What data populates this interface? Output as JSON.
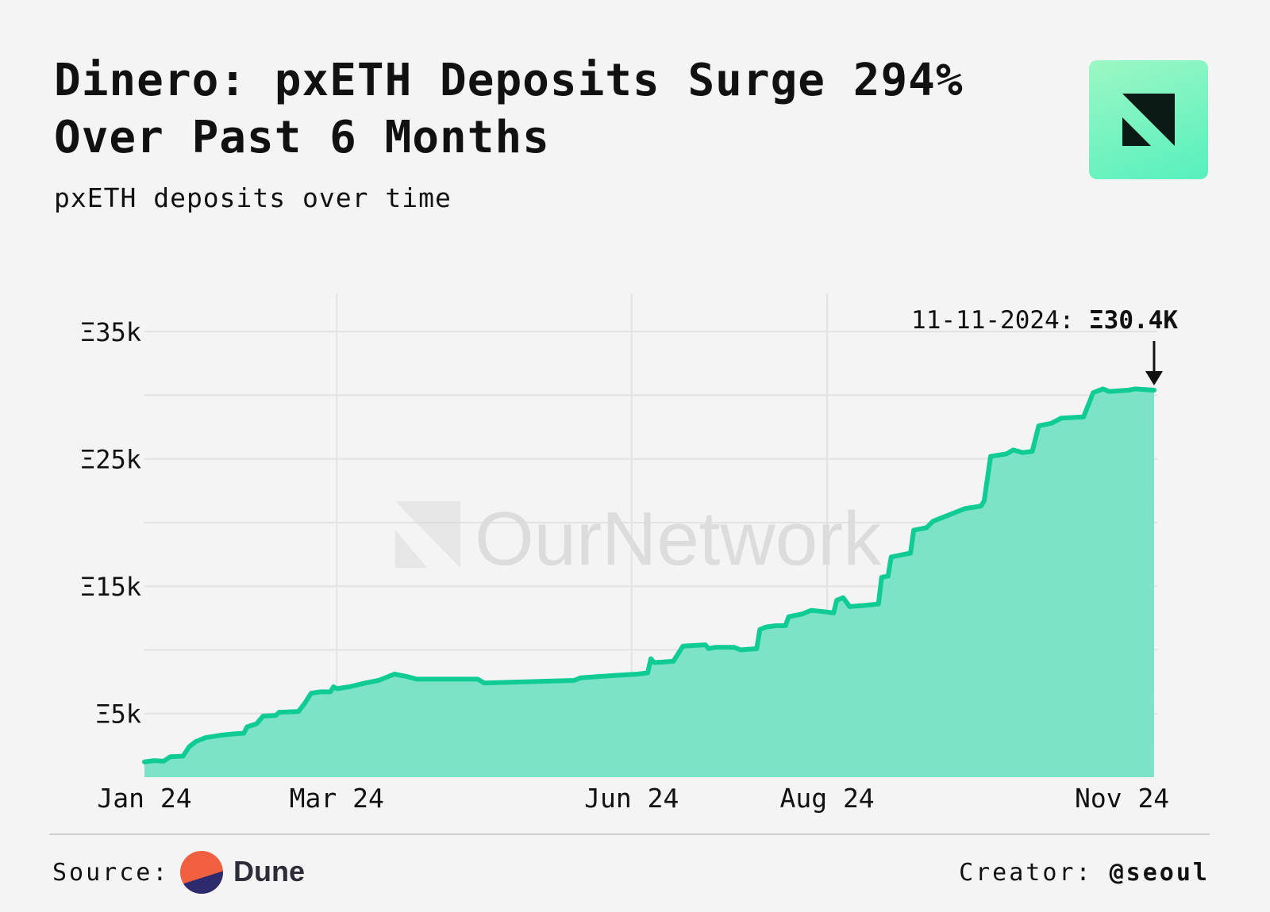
{
  "header": {
    "title": "Dinero: pxETH Deposits Surge 294% Over Past 6 Months",
    "subtitle": "pxETH deposits over time",
    "logo_icon": "ournetwork-logo-icon",
    "logo_colors": [
      "#9cf7c4",
      "#56f0bd",
      "#0b1a14"
    ]
  },
  "watermark": {
    "text": "OurNetwork"
  },
  "chart_data": {
    "type": "area",
    "title": "pxETH deposits over time",
    "xlabel": "",
    "ylabel": "",
    "x_ticks": [
      "Jan 24",
      "Mar 24",
      "Jun 24",
      "Aug 24",
      "Nov 24"
    ],
    "y_ticks": [
      "Ξ5k",
      "Ξ15k",
      "Ξ25k",
      "Ξ35k"
    ],
    "y_tick_values": [
      5000,
      15000,
      25000,
      35000
    ],
    "ylim": [
      0,
      38000
    ],
    "xlim": [
      "2024-01-01",
      "2024-11-12"
    ],
    "grid": true,
    "line_color": "#10cc94",
    "fill_color": "#7de3c6",
    "annotation": {
      "date": "2024-11-11",
      "label": "11-11-2024: ",
      "value_label": "Ξ30.4K",
      "value": 30400
    },
    "series": [
      {
        "values": [
          [
            "2024-01-01",
            1200
          ],
          [
            "2024-01-04",
            1300
          ],
          [
            "2024-01-07",
            1250
          ],
          [
            "2024-01-09",
            1600
          ],
          [
            "2024-01-13",
            1650
          ],
          [
            "2024-01-15",
            2400
          ],
          [
            "2024-01-17",
            2800
          ],
          [
            "2024-01-20",
            3100
          ],
          [
            "2024-01-25",
            3300
          ],
          [
            "2024-01-29",
            3400
          ],
          [
            "2024-02-01",
            3450
          ],
          [
            "2024-02-02",
            3950
          ],
          [
            "2024-02-05",
            4200
          ],
          [
            "2024-02-07",
            4800
          ],
          [
            "2024-02-11",
            4850
          ],
          [
            "2024-02-12",
            5100
          ],
          [
            "2024-02-18",
            5150
          ],
          [
            "2024-02-20",
            5800
          ],
          [
            "2024-02-22",
            6600
          ],
          [
            "2024-02-25",
            6700
          ],
          [
            "2024-02-28",
            6700
          ],
          [
            "2024-02-29",
            7100
          ],
          [
            "2024-03-01",
            6950
          ],
          [
            "2024-03-05",
            7100
          ],
          [
            "2024-03-10",
            7400
          ],
          [
            "2024-03-14",
            7600
          ],
          [
            "2024-03-19",
            8100
          ],
          [
            "2024-03-23",
            7900
          ],
          [
            "2024-03-26",
            7700
          ],
          [
            "2024-04-14",
            7700
          ],
          [
            "2024-04-16",
            7400
          ],
          [
            "2024-05-14",
            7600
          ],
          [
            "2024-05-16",
            7800
          ],
          [
            "2024-05-27",
            8000
          ],
          [
            "2024-06-03",
            8100
          ],
          [
            "2024-06-06",
            8200
          ],
          [
            "2024-06-07",
            9300
          ],
          [
            "2024-06-08",
            9000
          ],
          [
            "2024-06-14",
            9100
          ],
          [
            "2024-06-17",
            10300
          ],
          [
            "2024-06-24",
            10400
          ],
          [
            "2024-06-25",
            10100
          ],
          [
            "2024-06-27",
            10200
          ],
          [
            "2024-07-03",
            10200
          ],
          [
            "2024-07-05",
            10000
          ],
          [
            "2024-07-10",
            10100
          ],
          [
            "2024-07-11",
            11600
          ],
          [
            "2024-07-13",
            11800
          ],
          [
            "2024-07-16",
            11900
          ],
          [
            "2024-07-19",
            11900
          ],
          [
            "2024-07-20",
            12600
          ],
          [
            "2024-07-24",
            12800
          ],
          [
            "2024-07-27",
            13100
          ],
          [
            "2024-07-31",
            13000
          ],
          [
            "2024-08-03",
            12900
          ],
          [
            "2024-08-04",
            13900
          ],
          [
            "2024-08-06",
            14100
          ],
          [
            "2024-08-08",
            13400
          ],
          [
            "2024-08-13",
            13500
          ],
          [
            "2024-08-17",
            13600
          ],
          [
            "2024-08-18",
            15700
          ],
          [
            "2024-08-20",
            15800
          ],
          [
            "2024-08-21",
            17300
          ],
          [
            "2024-08-23",
            17400
          ],
          [
            "2024-08-27",
            17600
          ],
          [
            "2024-08-28",
            19400
          ],
          [
            "2024-09-01",
            19600
          ],
          [
            "2024-09-03",
            20100
          ],
          [
            "2024-09-05",
            20300
          ],
          [
            "2024-09-08",
            20600
          ],
          [
            "2024-09-11",
            20900
          ],
          [
            "2024-09-13",
            21100
          ],
          [
            "2024-09-18",
            21300
          ],
          [
            "2024-09-19",
            21700
          ],
          [
            "2024-09-21",
            25200
          ],
          [
            "2024-09-26",
            25400
          ],
          [
            "2024-09-28",
            25700
          ],
          [
            "2024-10-01",
            25500
          ],
          [
            "2024-10-04",
            25600
          ],
          [
            "2024-10-06",
            27600
          ],
          [
            "2024-10-10",
            27800
          ],
          [
            "2024-10-13",
            28200
          ],
          [
            "2024-10-20",
            28300
          ],
          [
            "2024-10-23",
            30200
          ],
          [
            "2024-10-26",
            30500
          ],
          [
            "2024-10-28",
            30300
          ],
          [
            "2024-11-03",
            30400
          ],
          [
            "2024-11-05",
            30500
          ],
          [
            "2024-11-11",
            30400
          ]
        ]
      }
    ]
  },
  "footer": {
    "source_label": "Source:",
    "source_name": "Dune",
    "source_icon": "dune-logo-icon",
    "creator_label": "Creator:",
    "creator_handle": "@seoul"
  }
}
